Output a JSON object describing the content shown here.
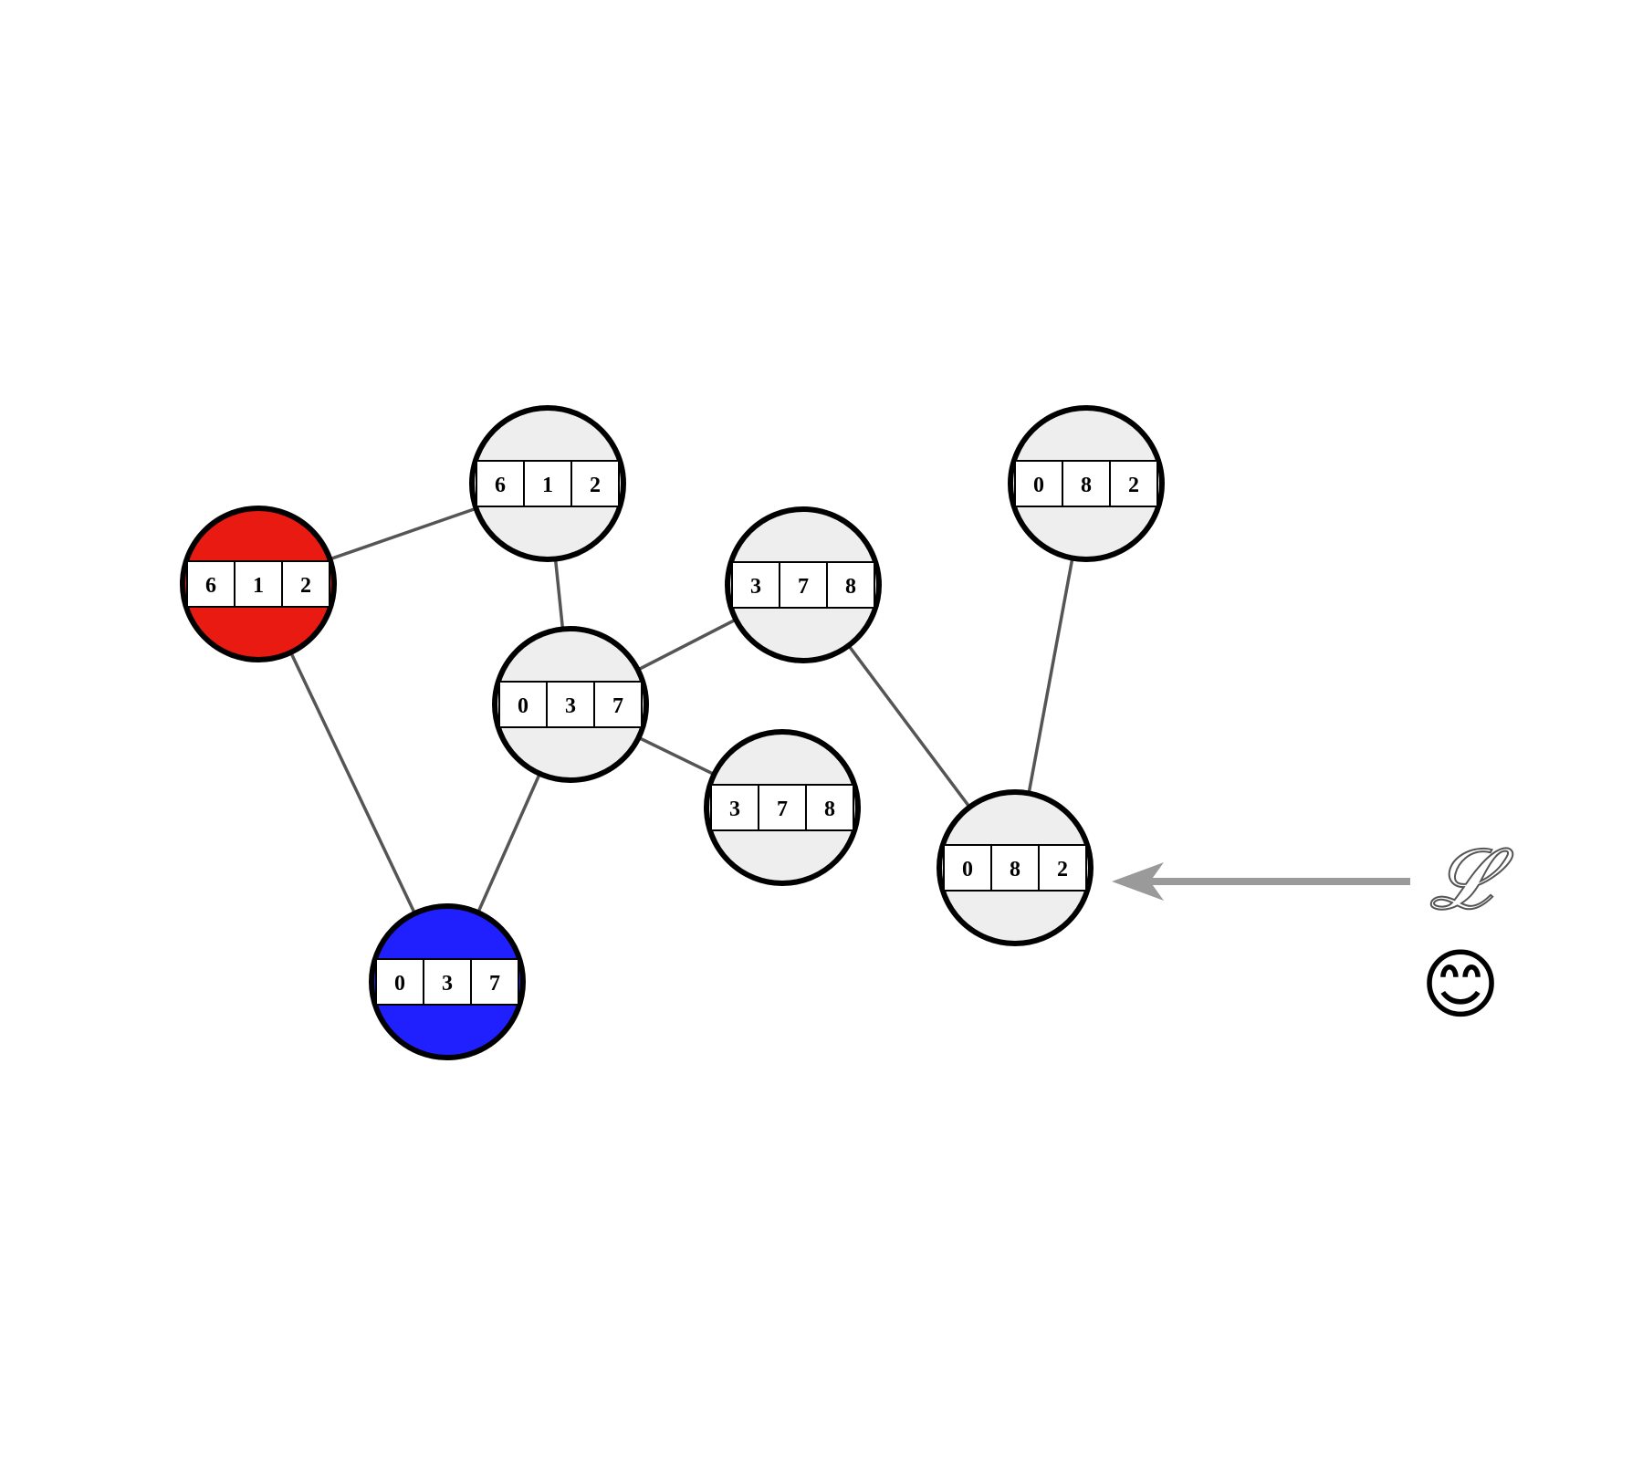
{
  "nodes": [
    {
      "id": "top-612",
      "values": [
        "6",
        "1",
        "2"
      ],
      "fill": "#eeeeee"
    },
    {
      "id": "left-612",
      "values": [
        "6",
        "1",
        "2"
      ],
      "fill": "#e81a12"
    },
    {
      "id": "mid-037",
      "values": [
        "0",
        "3",
        "7"
      ],
      "fill": "#eeeeee"
    },
    {
      "id": "bottom-037",
      "values": [
        "0",
        "3",
        "7"
      ],
      "fill": "#2020ff"
    },
    {
      "id": "upper-378",
      "values": [
        "3",
        "7",
        "8"
      ],
      "fill": "#eeeeee"
    },
    {
      "id": "lower-378",
      "values": [
        "3",
        "7",
        "8"
      ],
      "fill": "#eeeeee"
    },
    {
      "id": "top-082",
      "values": [
        "0",
        "8",
        "2"
      ],
      "fill": "#eeeeee"
    },
    {
      "id": "target-082",
      "values": [
        "0",
        "8",
        "2"
      ],
      "fill": "#eeeeee"
    }
  ],
  "edges": [
    [
      "left-612",
      "top-612"
    ],
    [
      "top-612",
      "mid-037"
    ],
    [
      "left-612",
      "bottom-037"
    ],
    [
      "mid-037",
      "bottom-037"
    ],
    [
      "mid-037",
      "upper-378"
    ],
    [
      "mid-037",
      "lower-378"
    ],
    [
      "upper-378",
      "target-082"
    ],
    [
      "top-082",
      "target-082"
    ]
  ],
  "agent": {
    "symbol": "𝓛",
    "emoji": "😊",
    "arrow_color": "#9a9a9a"
  },
  "colors": {
    "edge": "#555555",
    "node_border": "#000000",
    "cell_bg": "#ffffff"
  }
}
